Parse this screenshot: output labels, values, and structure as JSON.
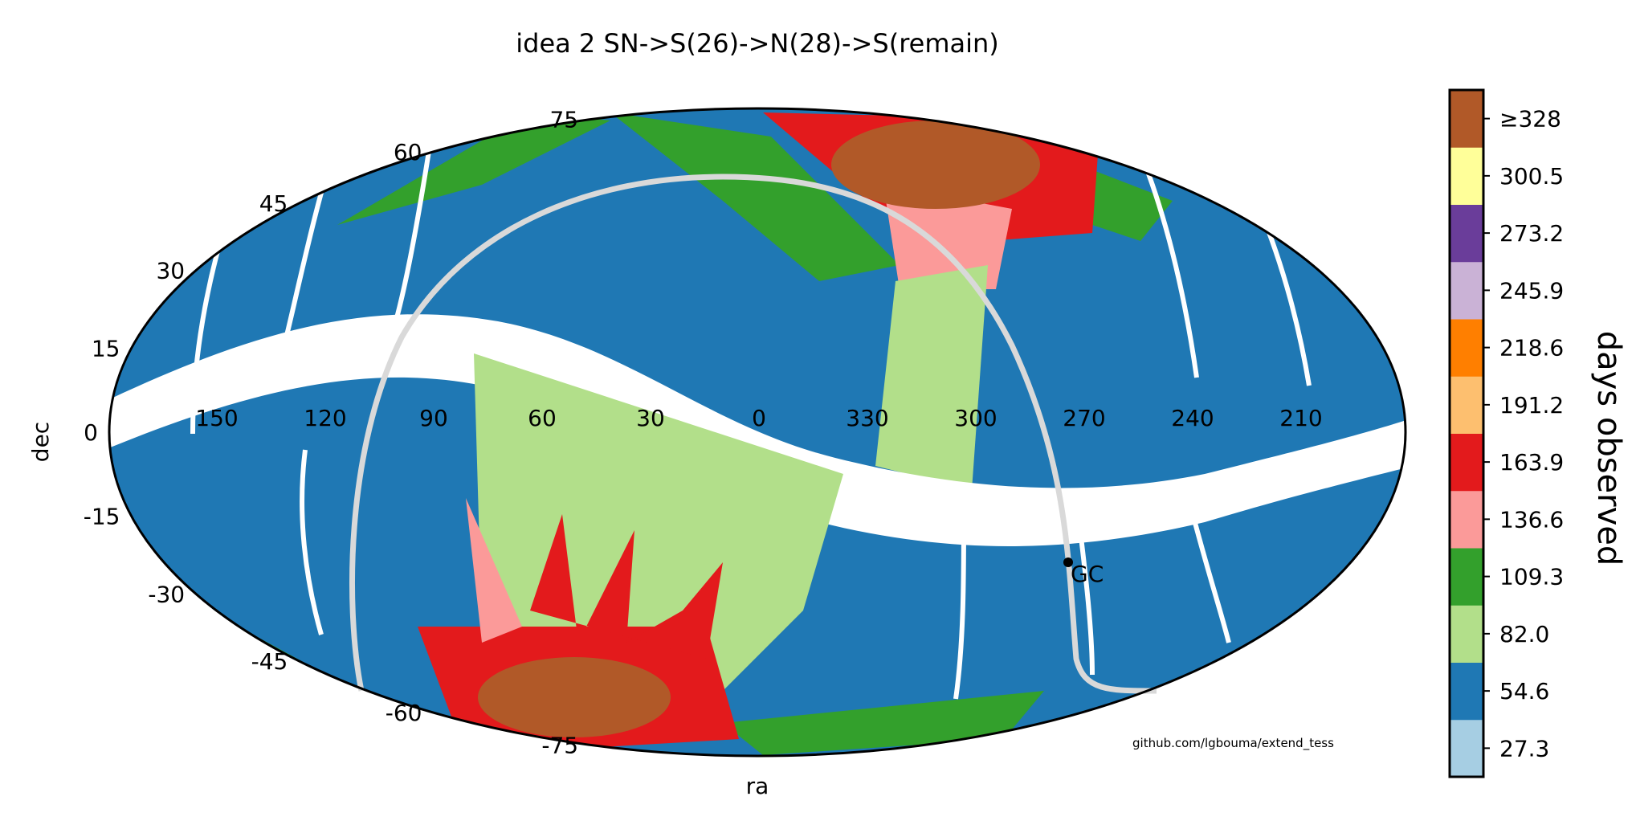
{
  "chart_data": {
    "type": "scatter",
    "projection": "aitoff",
    "title": "idea 2 SN->S(26)->N(28)->S(remain)",
    "xlabel": "ra",
    "ylabel": "dec",
    "ra_tick_labels": [
      "150",
      "120",
      "90",
      "60",
      "30",
      "0",
      "330",
      "300",
      "270",
      "240",
      "210"
    ],
    "dec_tick_labels": [
      "75",
      "60",
      "45",
      "30",
      "15",
      "0",
      "-15",
      "-30",
      "-45",
      "-60",
      "-75"
    ],
    "grid": true,
    "colorbar": {
      "label": "days observed",
      "tick_labels": [
        "27.3",
        "54.6",
        "82.0",
        "109.3",
        "136.6",
        "163.9",
        "191.2",
        "218.6",
        "245.9",
        "273.2",
        "300.5",
        "≥328"
      ],
      "colors": [
        "#a6cee3",
        "#1f78b4",
        "#b2df8a",
        "#33a02c",
        "#fb9a99",
        "#e31a1c",
        "#fdbf6f",
        "#ff7f00",
        "#cab2d6",
        "#6a3d9a",
        "#ffff99",
        "#b15928"
      ]
    },
    "annotations": [
      {
        "text": "GC",
        "ra": 266.4,
        "dec": -29.0
      }
    ],
    "credit": "github.com/lgbouma/extend_tess"
  }
}
